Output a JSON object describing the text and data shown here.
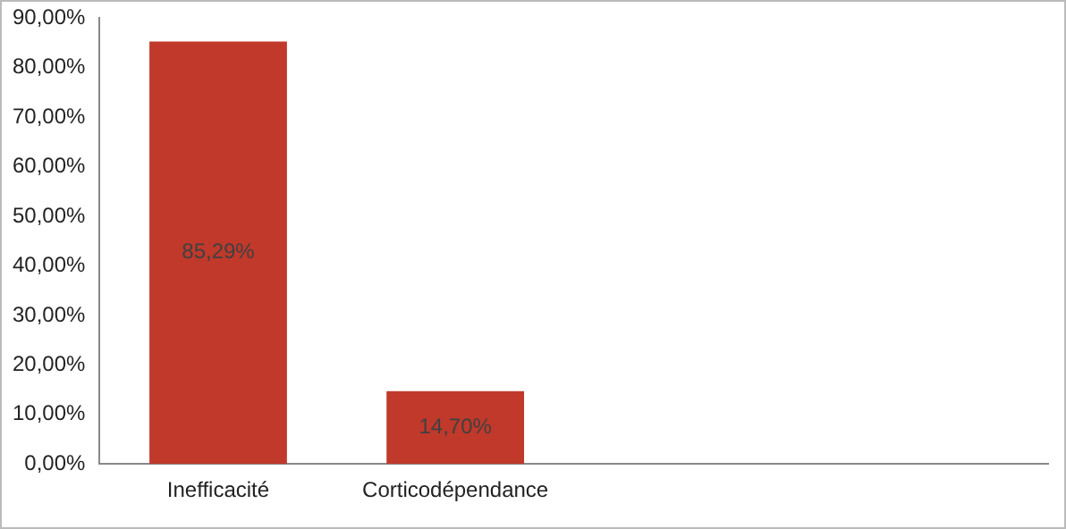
{
  "chart_data": {
    "type": "bar",
    "categories": [
      "Inefficacité",
      "Corticodépendance",
      null,
      null
    ],
    "values": [
      85.29,
      14.7,
      null,
      null
    ],
    "value_labels": [
      "85,29%",
      "14,70%",
      null,
      null
    ],
    "color": "#c0392b",
    "ylim": [
      0,
      90
    ],
    "yticks": [
      {
        "value": 0,
        "label": "0,00%"
      },
      {
        "value": 10,
        "label": "10,00%"
      },
      {
        "value": 20,
        "label": "20,00%"
      },
      {
        "value": 30,
        "label": "30,00%"
      },
      {
        "value": 40,
        "label": "40,00%"
      },
      {
        "value": 50,
        "label": "50,00%"
      },
      {
        "value": 60,
        "label": "60,00%"
      },
      {
        "value": 70,
        "label": "70,00%"
      },
      {
        "value": 80,
        "label": "80,00%"
      },
      {
        "value": 90,
        "label": "90,00%"
      }
    ],
    "grid": false,
    "legend": false
  }
}
